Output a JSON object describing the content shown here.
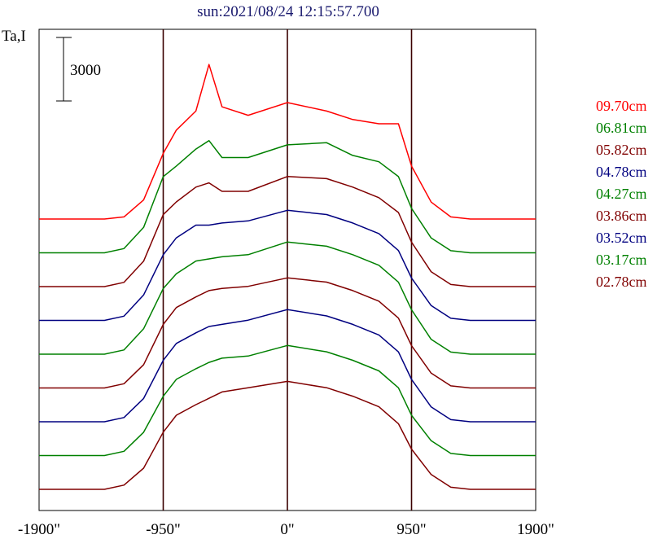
{
  "chart_data": {
    "type": "line",
    "title": "sun:2021/08/24 12:15:57.700",
    "ylabel": "Ta,I",
    "scale_bar_label": "3000",
    "x_tick_labels": [
      "-1900\"",
      "-950\"",
      "0\"",
      "950\"",
      "1900\""
    ],
    "xlim": [
      -1900,
      1900
    ],
    "grid_x": [
      -950,
      0,
      950
    ],
    "series": [
      {
        "name": "09.70cm",
        "color": "#ff0000",
        "baseline": 0
      },
      {
        "name": "06.81cm",
        "color": "#008000",
        "baseline": 0
      },
      {
        "name": "05.82cm",
        "color": "#800000",
        "baseline": 0
      },
      {
        "name": "04.78cm",
        "color": "#000080",
        "baseline": 0
      },
      {
        "name": "04.27cm",
        "color": "#008000",
        "baseline": 0
      },
      {
        "name": "03.86cm",
        "color": "#800000",
        "baseline": 0
      },
      {
        "name": "03.52cm",
        "color": "#000080",
        "baseline": 0
      },
      {
        "name": "03.17cm",
        "color": "#008000",
        "baseline": 0
      },
      {
        "name": "02.78cm",
        "color": "#800000",
        "baseline": 0
      }
    ],
    "profile_x": [
      -1900,
      -1400,
      -1250,
      -1100,
      -950,
      -850,
      -700,
      -600,
      -500,
      -300,
      0,
      300,
      500,
      700,
      850,
      950,
      1100,
      1250,
      1400,
      1900
    ],
    "profiles": [
      [
        0,
        0,
        100,
        900,
        3100,
        4200,
        5100,
        7300,
        5300,
        4900,
        5500,
        5100,
        4700,
        4500,
        4500,
        2500,
        800,
        100,
        0,
        0
      ],
      [
        0,
        0,
        200,
        1200,
        3600,
        4100,
        4900,
        5300,
        4500,
        4500,
        5100,
        5200,
        4600,
        4300,
        3600,
        2100,
        700,
        100,
        0,
        0
      ],
      [
        0,
        0,
        200,
        1200,
        3400,
        4000,
        4700,
        4900,
        4500,
        4500,
        5200,
        5100,
        4700,
        4200,
        3500,
        2100,
        700,
        100,
        0,
        0
      ],
      [
        0,
        0,
        200,
        1200,
        3100,
        3900,
        4500,
        4500,
        4600,
        4700,
        5200,
        5000,
        4600,
        4100,
        3300,
        2000,
        700,
        100,
        0,
        0
      ],
      [
        0,
        0,
        200,
        1200,
        3100,
        3800,
        4400,
        4500,
        4600,
        4700,
        5300,
        5100,
        4700,
        4200,
        3400,
        2100,
        700,
        100,
        0,
        0
      ],
      [
        0,
        0,
        200,
        1100,
        3000,
        3800,
        4300,
        4600,
        4700,
        4800,
        5200,
        5000,
        4600,
        4100,
        3300,
        2000,
        700,
        100,
        0,
        0
      ],
      [
        0,
        0,
        200,
        1100,
        2900,
        3700,
        4200,
        4500,
        4600,
        4800,
        5300,
        5000,
        4600,
        4100,
        3300,
        2000,
        700,
        100,
        0,
        0
      ],
      [
        0,
        0,
        200,
        1100,
        2800,
        3600,
        4100,
        4400,
        4600,
        4700,
        5200,
        4900,
        4500,
        4000,
        3200,
        1900,
        700,
        100,
        0,
        0
      ],
      [
        0,
        0,
        200,
        1000,
        2700,
        3500,
        4000,
        4300,
        4600,
        4800,
        5100,
        4800,
        4400,
        3900,
        3100,
        1900,
        700,
        100,
        0,
        0
      ]
    ]
  }
}
